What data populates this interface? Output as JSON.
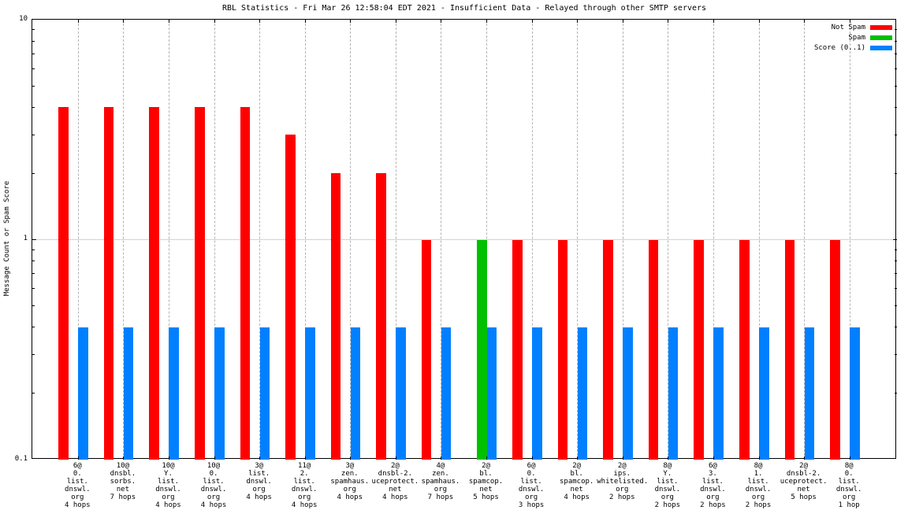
{
  "title": "RBL Statistics - Fri Mar 26 12:58:04 EDT 2021 - Insufficient Data - Relayed through other SMTP servers",
  "y_axis_label": "Message Count or Spam Score",
  "legend": [
    {
      "label": "Not Spam",
      "color": "#ff0000"
    },
    {
      "label": "Spam",
      "color": "#00c000"
    },
    {
      "label": "Score (0..1)",
      "color": "#0080ff"
    }
  ],
  "chart_data": {
    "type": "bar",
    "title": "RBL Statistics - Fri Mar 26 12:58:04 EDT 2021 - Insufficient Data - Relayed through other SMTP servers",
    "ylabel": "Message Count or Spam Score",
    "xlabel": "",
    "yscale": "log",
    "ylim": [
      0.1,
      10
    ],
    "y_tick_labels": [
      "10",
      "1",
      "0.1"
    ],
    "grid": true,
    "legend_position": "top-right",
    "categories": [
      [
        "6@",
        "0.",
        "list.",
        "dnswl.",
        "org",
        "4 hops"
      ],
      [
        "10@",
        "dnsbl.",
        "sorbs.",
        "net",
        "7 hops"
      ],
      [
        "10@",
        "Y.",
        "list.",
        "dnswl.",
        "org",
        "4 hops"
      ],
      [
        "10@",
        "0.",
        "list.",
        "dnswl.",
        "org",
        "4 hops"
      ],
      [
        "3@",
        "list.",
        "dnswl.",
        "org",
        "4 hops"
      ],
      [
        "11@",
        "2.",
        "list.",
        "dnswl.",
        "org",
        "4 hops"
      ],
      [
        "3@",
        "zen.",
        "spamhaus.",
        "org",
        "4 hops"
      ],
      [
        "2@",
        "dnsbl-2.",
        "uceprotect.",
        "net",
        "4 hops"
      ],
      [
        "4@",
        "zen.",
        "spamhaus.",
        "org",
        "7 hops"
      ],
      [
        "2@",
        "bl.",
        "spamcop.",
        "net",
        "5 hops"
      ],
      [
        "6@",
        "0.",
        "list.",
        "dnswl.",
        "org",
        "3 hops"
      ],
      [
        "2@",
        "bl.",
        "spamcop.",
        "net",
        "4 hops"
      ],
      [
        "2@",
        "ips.",
        "whitelisted.",
        "org",
        "2 hops"
      ],
      [
        "8@",
        "Y.",
        "list.",
        "dnswl.",
        "org",
        "2 hops"
      ],
      [
        "6@",
        "3.",
        "list.",
        "dnswl.",
        "org",
        "2 hops"
      ],
      [
        "8@",
        "1.",
        "list.",
        "dnswl.",
        "org",
        "2 hops"
      ],
      [
        "2@",
        "dnsbl-2.",
        "uceprotect.",
        "net",
        "5 hops"
      ],
      [
        "8@",
        "0.",
        "list.",
        "dnswl.",
        "org",
        "1 hop"
      ]
    ],
    "series": [
      {
        "name": "Not Spam",
        "color": "#ff0000",
        "values": [
          4,
          4,
          4,
          4,
          4,
          3,
          2,
          2,
          1,
          0,
          1,
          1,
          1,
          1,
          1,
          1,
          1,
          1
        ]
      },
      {
        "name": "Spam",
        "color": "#00c000",
        "values": [
          0,
          0,
          0,
          0,
          0,
          0,
          0,
          0,
          0,
          1,
          0,
          0,
          0,
          0,
          0,
          0,
          0,
          0
        ]
      },
      {
        "name": "Score (0..1)",
        "color": "#0080ff",
        "values": [
          0.4,
          0.4,
          0.4,
          0.4,
          0.4,
          0.4,
          0.4,
          0.4,
          0.4,
          0.4,
          0.4,
          0.4,
          0.4,
          0.4,
          0.4,
          0.4,
          0.4,
          0.4
        ]
      }
    ]
  }
}
